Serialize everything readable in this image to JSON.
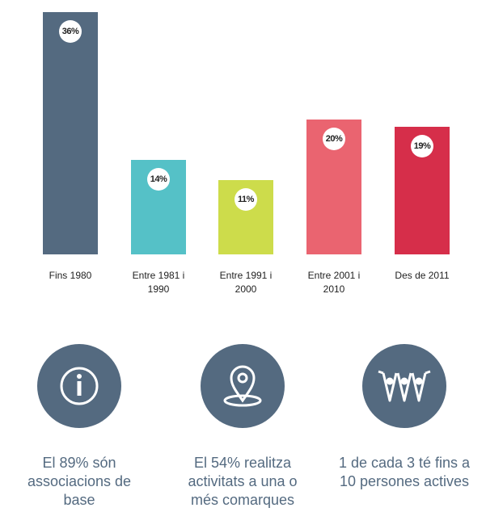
{
  "chart_data": {
    "type": "bar",
    "categories": [
      "Fins 1980",
      "Entre 1981 i 1990",
      "Entre 1991 i 2000",
      "Entre 2001 i 2010",
      "Des de 2011"
    ],
    "values": [
      36,
      14,
      11,
      20,
      19
    ],
    "value_labels": [
      "36%",
      "14%",
      "11%",
      "20%",
      "19%"
    ],
    "colors": [
      "#546a80",
      "#55c1c7",
      "#cddc4b",
      "#ea6470",
      "#d62e4a"
    ]
  },
  "facts": [
    {
      "text": "El 89% són associacions de base"
    },
    {
      "text": "El 54% realitza activitats a una o més comarques"
    },
    {
      "text": "1 de cada 3 té fins a 10 persones actives"
    }
  ]
}
